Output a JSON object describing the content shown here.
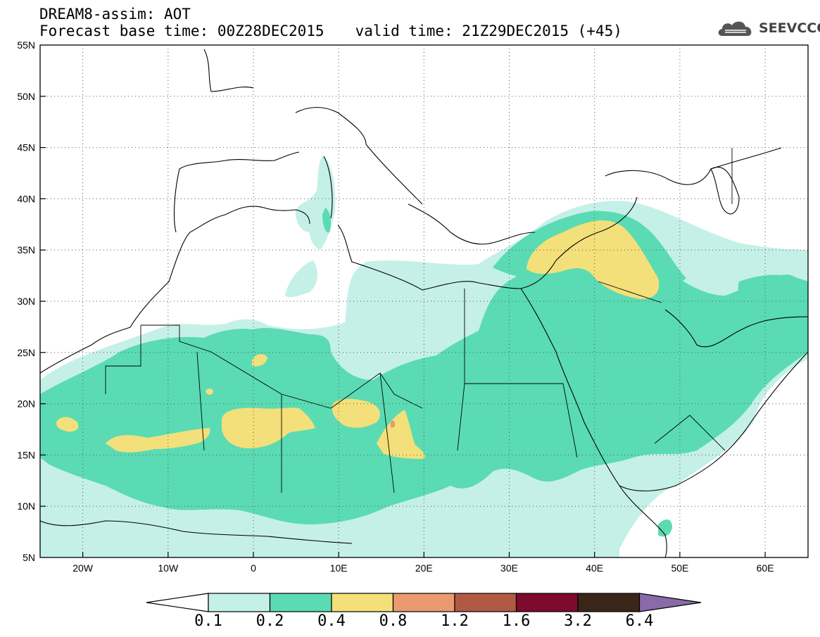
{
  "header": {
    "line1": "DREAM8-assim: AOT",
    "base_time_label": "Forecast base time: 00Z28DEC2015",
    "valid_time_label": "valid time: 21Z29DEC2015 (+45)"
  },
  "logo": {
    "text": "SEEVCCC",
    "icon": "cloud-icon"
  },
  "map": {
    "lon_range": [
      -25,
      65
    ],
    "lat_range": [
      5,
      55
    ],
    "lon_ticks": [
      "20W",
      "10W",
      "0",
      "10E",
      "20E",
      "30E",
      "40E",
      "50E",
      "60E"
    ],
    "lat_ticks": [
      "55N",
      "50N",
      "45N",
      "40N",
      "35N",
      "30N",
      "25N",
      "20N",
      "15N",
      "10N",
      "5N"
    ],
    "gridlines": "dotted"
  },
  "colorbar": {
    "levels": [
      "0.1",
      "0.2",
      "0.4",
      "0.8",
      "1.2",
      "1.6",
      "3.2",
      "6.4"
    ],
    "colors": [
      "#c4f0e8",
      "#5adbb3",
      "#f3e07a",
      "#e99a6e",
      "#b05a46",
      "#7e0a30",
      "#3a2618",
      "#8a6aa8"
    ],
    "low_end": "#ffffff"
  }
}
